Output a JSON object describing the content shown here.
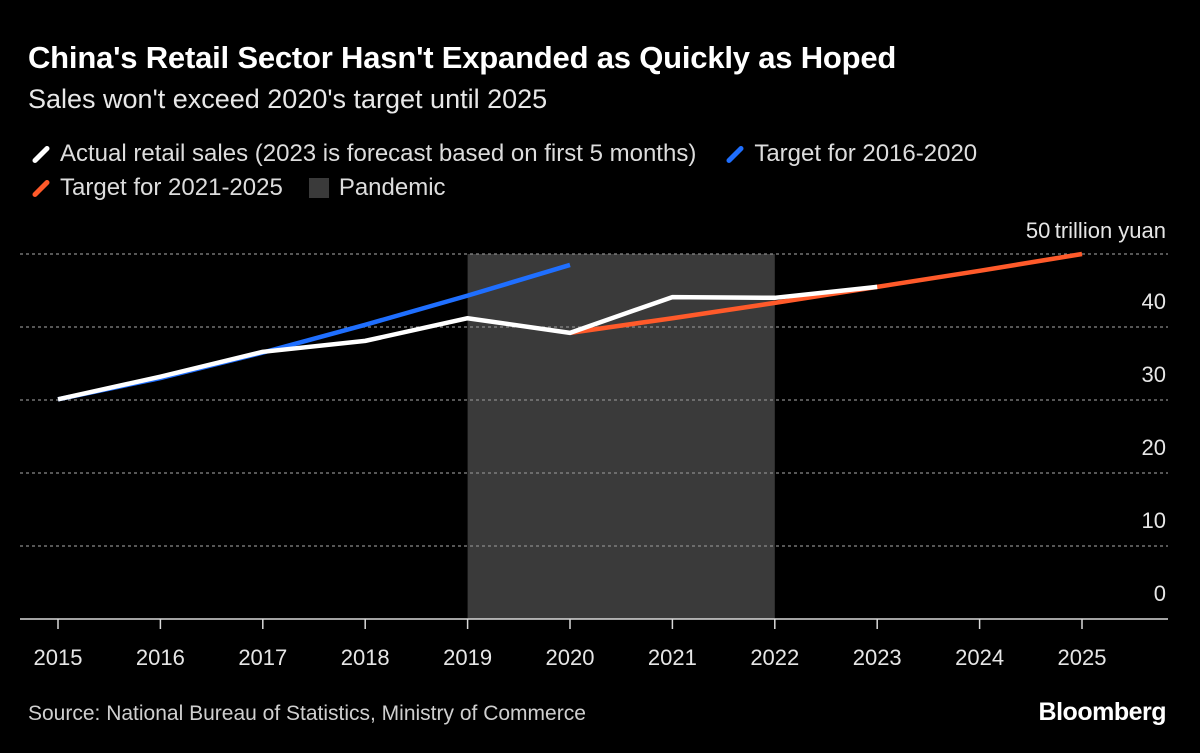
{
  "title": "China's Retail Sector Hasn't Expanded as Quickly as Hoped",
  "subtitle": "Sales won't exceed 2020's target until 2025",
  "legend": [
    {
      "label": "Actual retail sales (2023 is forecast based on first 5 months)",
      "color": "#ffffff",
      "kind": "line"
    },
    {
      "label": "Target for 2016-2020",
      "color": "#1f6fff",
      "kind": "line"
    },
    {
      "label": "Target for 2021-2025",
      "color": "#ff5a2a",
      "kind": "line"
    },
    {
      "label": "Pandemic",
      "color": "#3a3a3a",
      "kind": "box"
    }
  ],
  "source": "Source: National Bureau of Statistics, Ministry of Commerce",
  "brand": "Bloomberg",
  "chart_data": {
    "type": "line",
    "title": "China's Retail Sector Hasn't Expanded as Quickly as Hoped",
    "x": [
      "2015",
      "2016",
      "2017",
      "2018",
      "2019",
      "2020",
      "2021",
      "2022",
      "2023",
      "2024",
      "2025"
    ],
    "y_unit_label": "trillion yuan",
    "y_ticks": [
      0,
      10,
      20,
      30,
      40,
      50
    ],
    "ylim": [
      0,
      50
    ],
    "shaded_region": {
      "label": "Pandemic",
      "from": "2019",
      "to": "2022"
    },
    "series": [
      {
        "name": "Actual retail sales (2023 is forecast based on first 5 months)",
        "color": "#ffffff",
        "points": [
          [
            "2015",
            30.1
          ],
          [
            "2016",
            33.2
          ],
          [
            "2017",
            36.6
          ],
          [
            "2018",
            38.1
          ],
          [
            "2019",
            41.2
          ],
          [
            "2020",
            39.2
          ],
          [
            "2021",
            44.1
          ],
          [
            "2022",
            44.0
          ],
          [
            "2023",
            45.5
          ]
        ]
      },
      {
        "name": "Target for 2016-2020",
        "color": "#1f6fff",
        "points": [
          [
            "2015",
            30.1
          ],
          [
            "2016",
            33.0
          ],
          [
            "2017",
            36.5
          ],
          [
            "2018",
            40.3
          ],
          [
            "2019",
            44.3
          ],
          [
            "2020",
            48.5
          ]
        ]
      },
      {
        "name": "Target for 2021-2025",
        "color": "#ff5a2a",
        "points": [
          [
            "2020",
            39.2
          ],
          [
            "2021",
            41.2
          ],
          [
            "2022",
            43.3
          ],
          [
            "2023",
            45.5
          ],
          [
            "2024",
            47.7
          ],
          [
            "2025",
            50.0
          ]
        ]
      }
    ]
  }
}
